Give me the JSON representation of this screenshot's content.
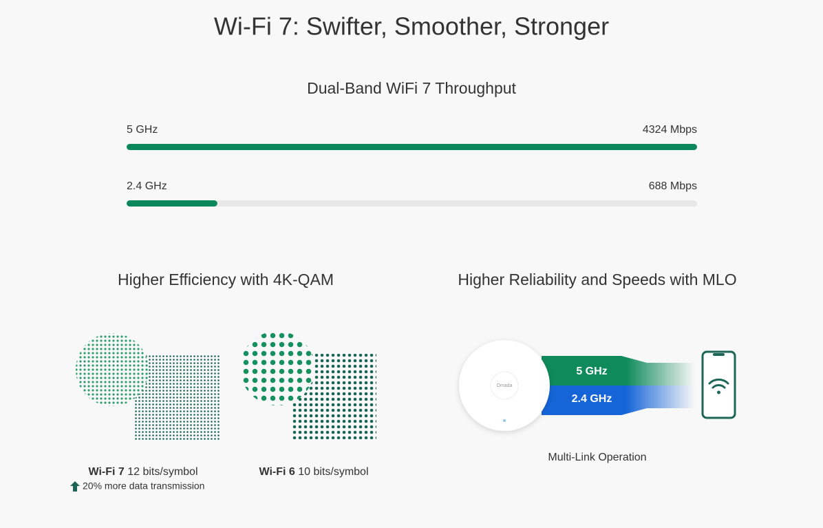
{
  "title": "Wi-Fi 7: Swifter, Smoother, Stronger",
  "throughput": {
    "title": "Dual-Band WiFi 7 Throughput",
    "bands": [
      {
        "name": "5 GHz",
        "value": 4324,
        "label": "4324 Mbps"
      },
      {
        "name": "2.4 GHz",
        "value": 688,
        "label": "688 Mbps"
      }
    ]
  },
  "qam": {
    "title": "Higher Efficiency with 4K-QAM",
    "items": [
      {
        "name": "Wi-Fi 7",
        "desc": "12 bits/symbol",
        "note": "20% more data transmission"
      },
      {
        "name": "Wi-Fi 6",
        "desc": "10 bits/symbol"
      }
    ]
  },
  "mlo": {
    "title": "Higher Reliability and Speeds with MLO",
    "device": "Omada",
    "bands": [
      "5 GHz",
      "2.4 GHz"
    ],
    "caption": "Multi-Link Operation"
  }
}
